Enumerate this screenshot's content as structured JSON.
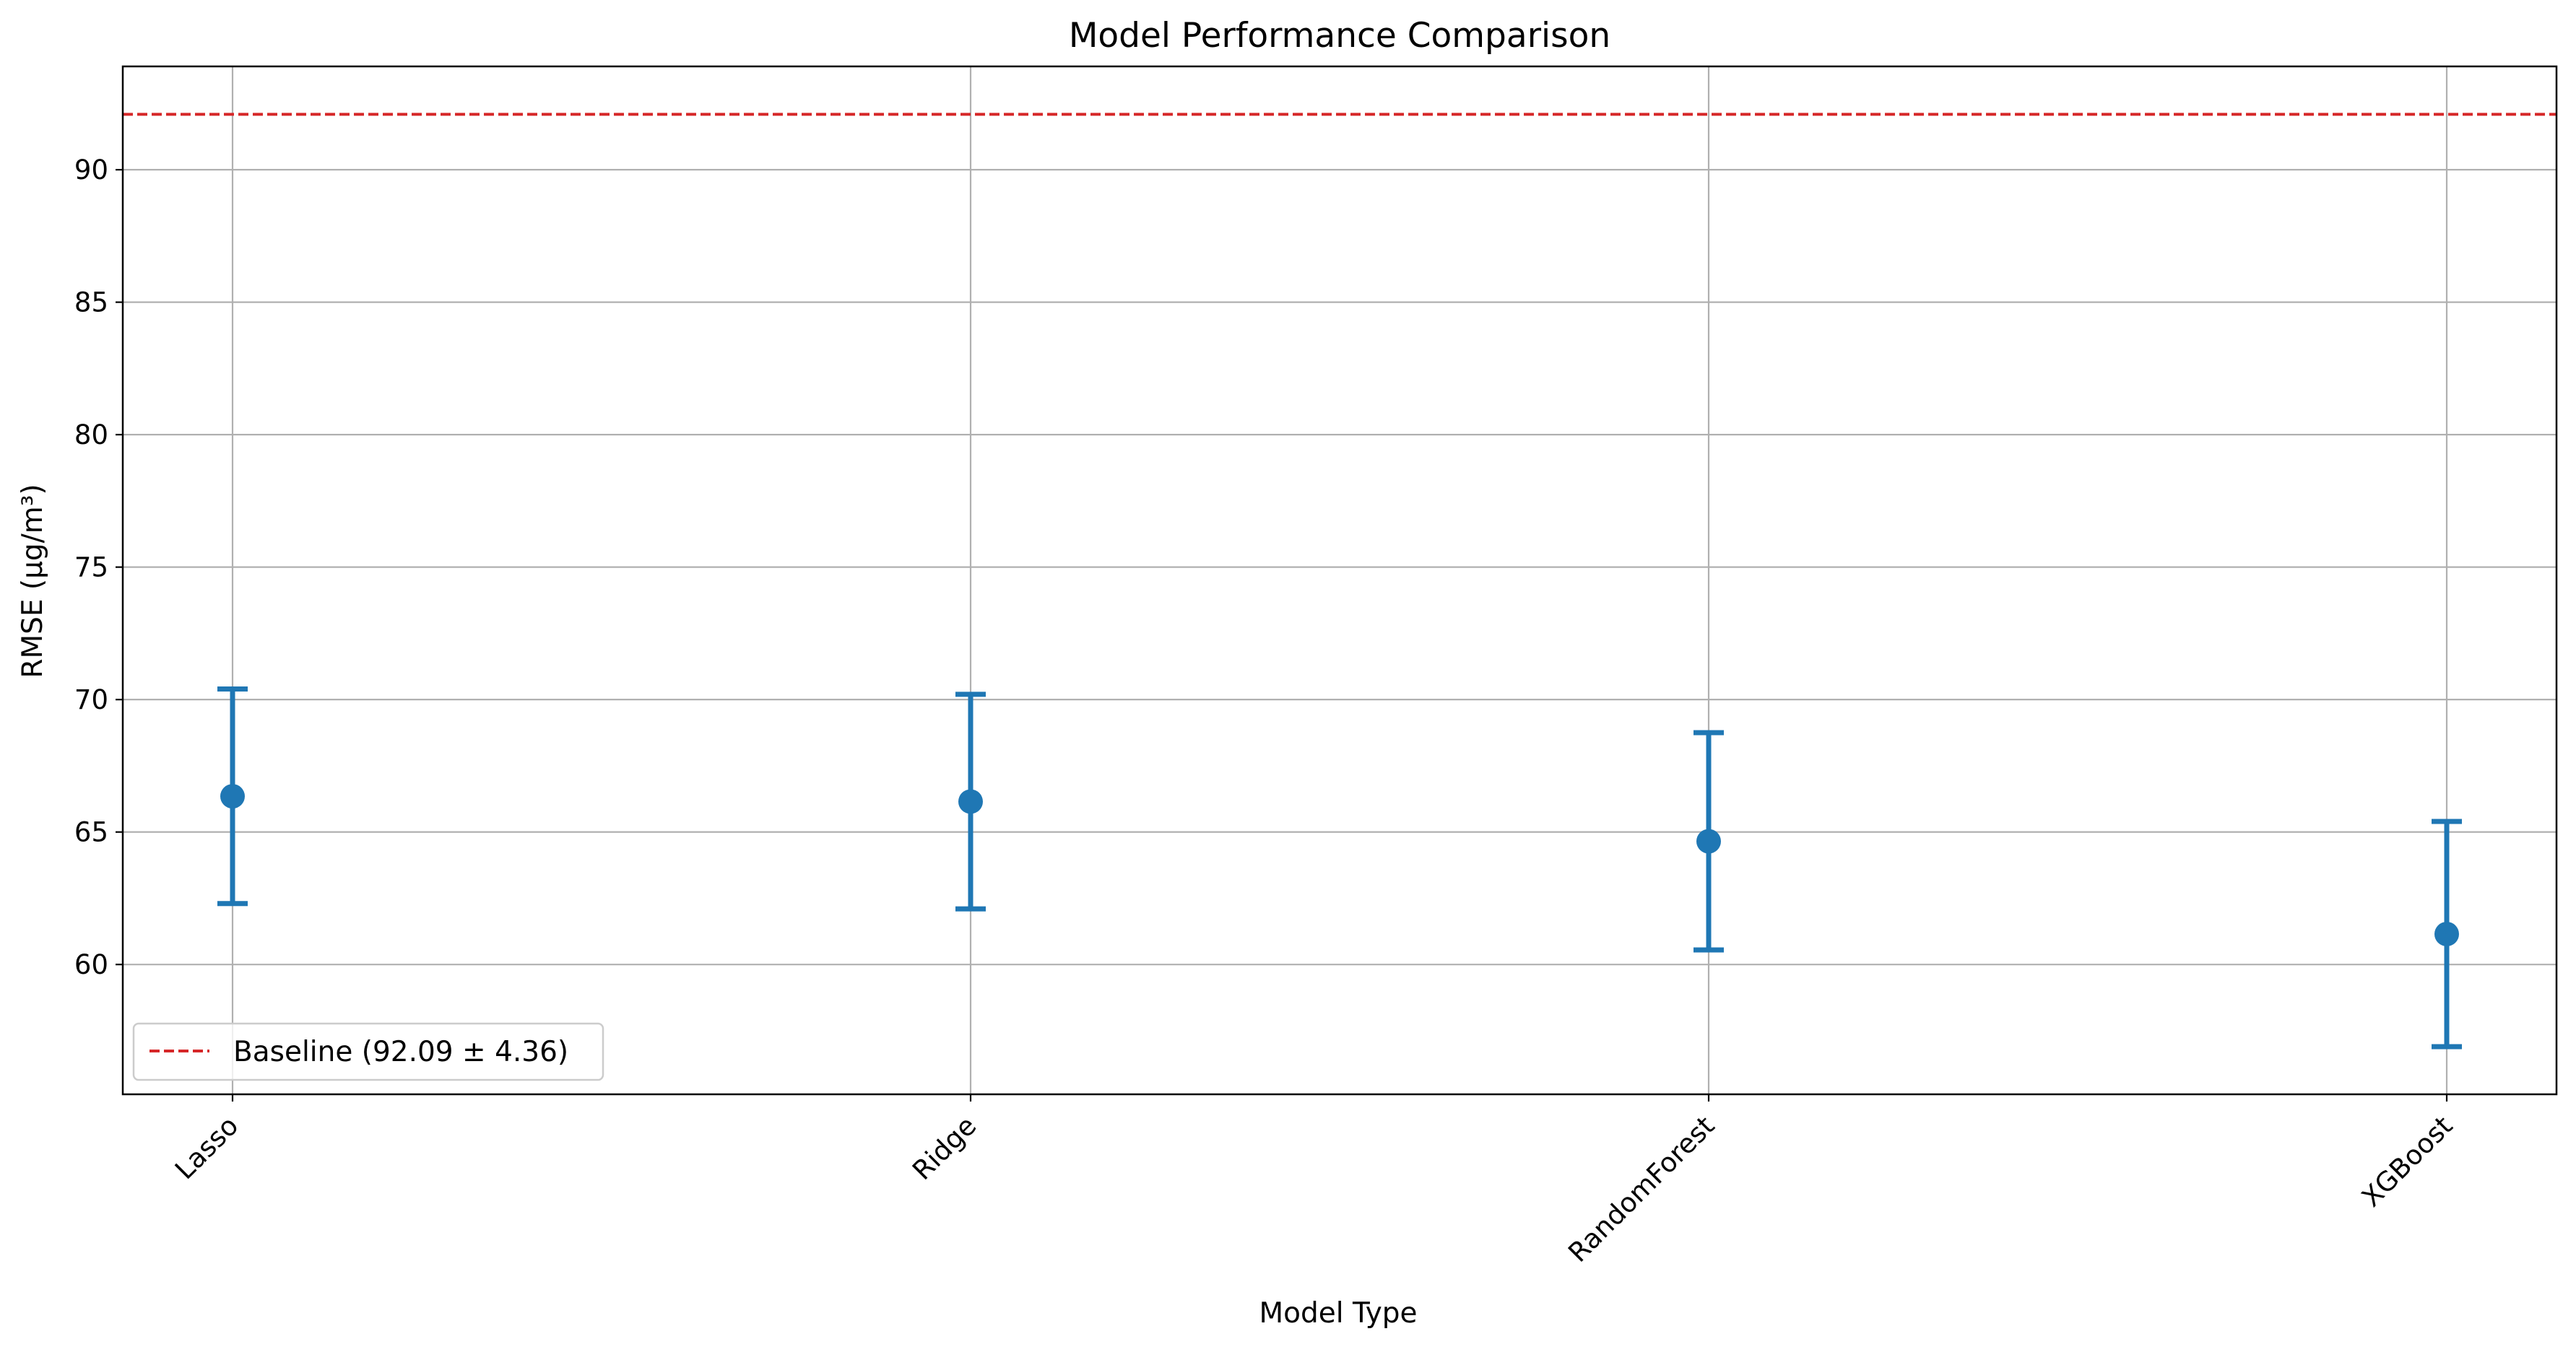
{
  "chart_data": {
    "type": "scatter",
    "title": "Model Performance Comparison",
    "xlabel": "Model Type",
    "ylabel": "RMSE (µg/m³)",
    "categories": [
      "Lasso",
      "Ridge",
      "RandomForest",
      "XGBoost"
    ],
    "series": [
      {
        "values": [
          66.35,
          66.15,
          64.65,
          61.15
        ],
        "error": [
          4.05,
          4.05,
          4.1,
          4.25
        ],
        "color": "#1f77b4",
        "marker": "circle",
        "errorbar_caps": true
      }
    ],
    "reference_line": {
      "name": "Baseline (92.09 ± 4.36)",
      "value": 92.09,
      "std": 4.36,
      "style": "dashed",
      "color": "#d62728"
    },
    "ylim": [
      55.1,
      93.9
    ],
    "yticks": [
      60,
      65,
      70,
      75,
      80,
      85,
      90
    ],
    "ytick_labels": [
      "60",
      "65",
      "70",
      "75",
      "80",
      "85",
      "90"
    ],
    "xtick_rotation": 45,
    "grid": true,
    "legend_placement": "bottom-left"
  }
}
